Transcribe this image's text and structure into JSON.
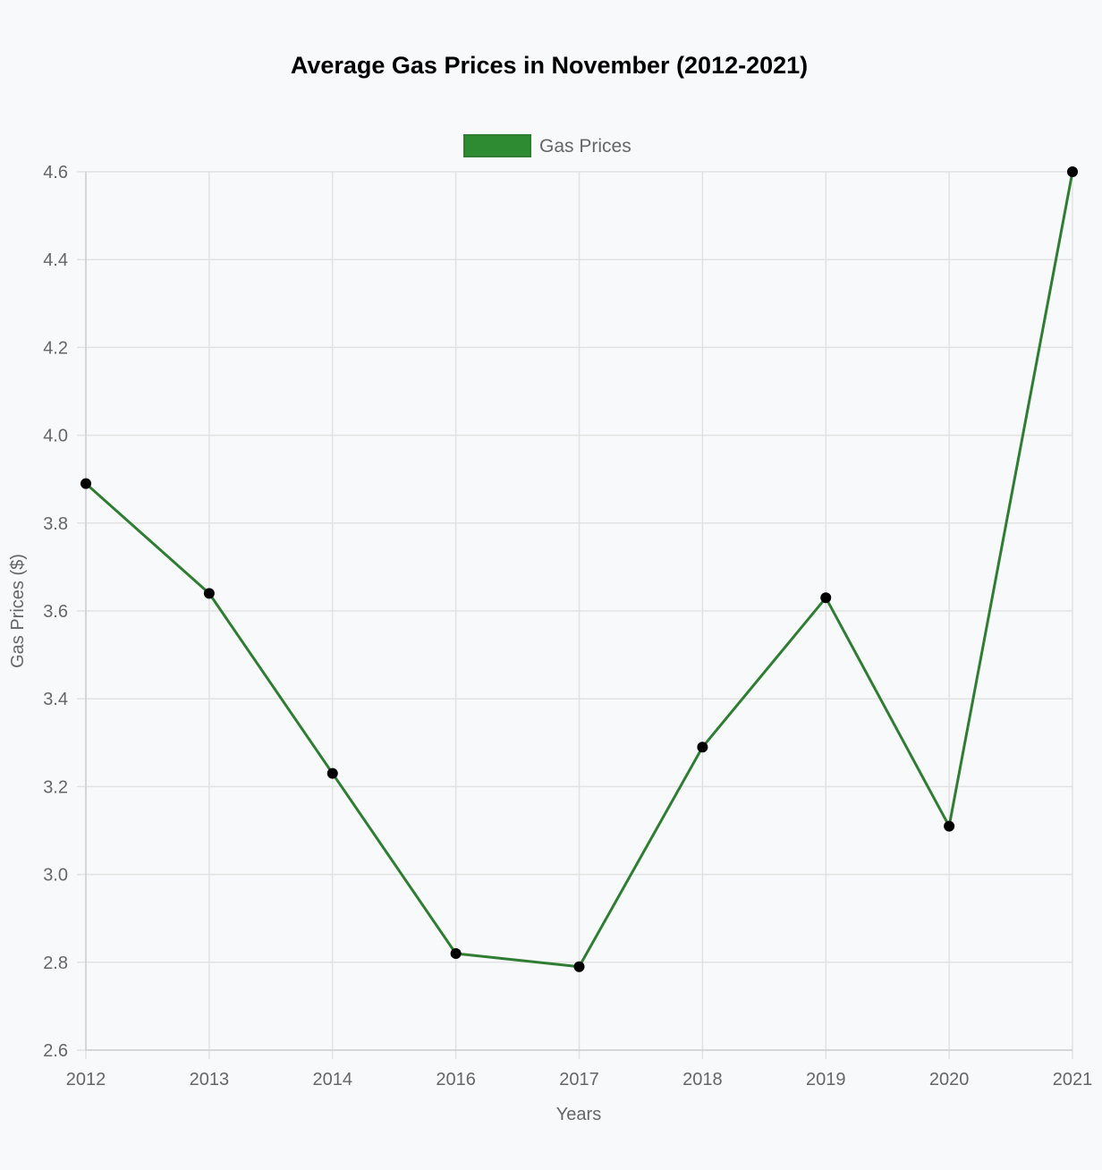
{
  "chart_data": {
    "type": "line",
    "title": "Average Gas Prices in November (2012-2021)",
    "xlabel": "Years",
    "ylabel": "Gas Prices ($)",
    "categories": [
      "2012",
      "2013",
      "2014",
      "2016",
      "2017",
      "2018",
      "2019",
      "2020",
      "2021"
    ],
    "series": [
      {
        "name": "Gas Prices",
        "values": [
          3.89,
          3.64,
          3.23,
          2.82,
          2.79,
          3.29,
          3.63,
          3.11,
          4.6
        ]
      }
    ],
    "ylim": [
      2.6,
      4.6
    ],
    "yticks": [
      "2.6",
      "2.8",
      "3.0",
      "3.2",
      "3.4",
      "3.6",
      "3.8",
      "4.0",
      "4.2",
      "4.4",
      "4.6"
    ],
    "grid": true,
    "legend_position": "top-center",
    "colors": {
      "line": "#2e7d32",
      "legend_fill": "#2e8b32",
      "point": "#000000",
      "background": "#f8f9fa"
    }
  }
}
